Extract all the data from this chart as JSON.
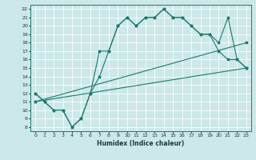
{
  "xlabel": "Humidex (Indice chaleur)",
  "bg_color": "#cce8e8",
  "grid_color": "#ffffff",
  "line_color": "#1a7a6e",
  "xlim": [
    -0.5,
    23.5
  ],
  "ylim": [
    7.5,
    22.5
  ],
  "xticks": [
    0,
    1,
    2,
    3,
    4,
    5,
    6,
    7,
    8,
    9,
    10,
    11,
    12,
    13,
    14,
    15,
    16,
    17,
    18,
    19,
    20,
    21,
    22,
    23
  ],
  "yticks": [
    8,
    9,
    10,
    11,
    12,
    13,
    14,
    15,
    16,
    17,
    18,
    19,
    20,
    21,
    22
  ],
  "lines": [
    {
      "x": [
        0,
        1,
        2,
        3,
        4,
        5,
        6,
        7,
        8,
        9,
        10,
        11,
        12,
        13,
        14,
        15,
        16,
        17,
        18,
        19,
        20,
        21,
        22,
        23
      ],
      "y": [
        12,
        11,
        10,
        10,
        8,
        9,
        12,
        17,
        17,
        20,
        21,
        20,
        21,
        21,
        22,
        21,
        21,
        20,
        19,
        19,
        18,
        21,
        16,
        15
      ]
    },
    {
      "x": [
        0,
        1,
        2,
        3,
        4,
        5,
        6,
        7,
        8,
        9,
        10,
        11,
        12,
        13,
        14,
        15,
        16,
        17,
        18,
        19,
        20,
        21,
        22,
        23
      ],
      "y": [
        12,
        11,
        10,
        10,
        8,
        9,
        12,
        14,
        17,
        20,
        21,
        20,
        21,
        21,
        22,
        21,
        21,
        20,
        19,
        19,
        17,
        16,
        16,
        15
      ]
    },
    {
      "x": [
        0,
        23
      ],
      "y": [
        11,
        18
      ]
    },
    {
      "x": [
        0,
        23
      ],
      "y": [
        11,
        15
      ]
    }
  ]
}
